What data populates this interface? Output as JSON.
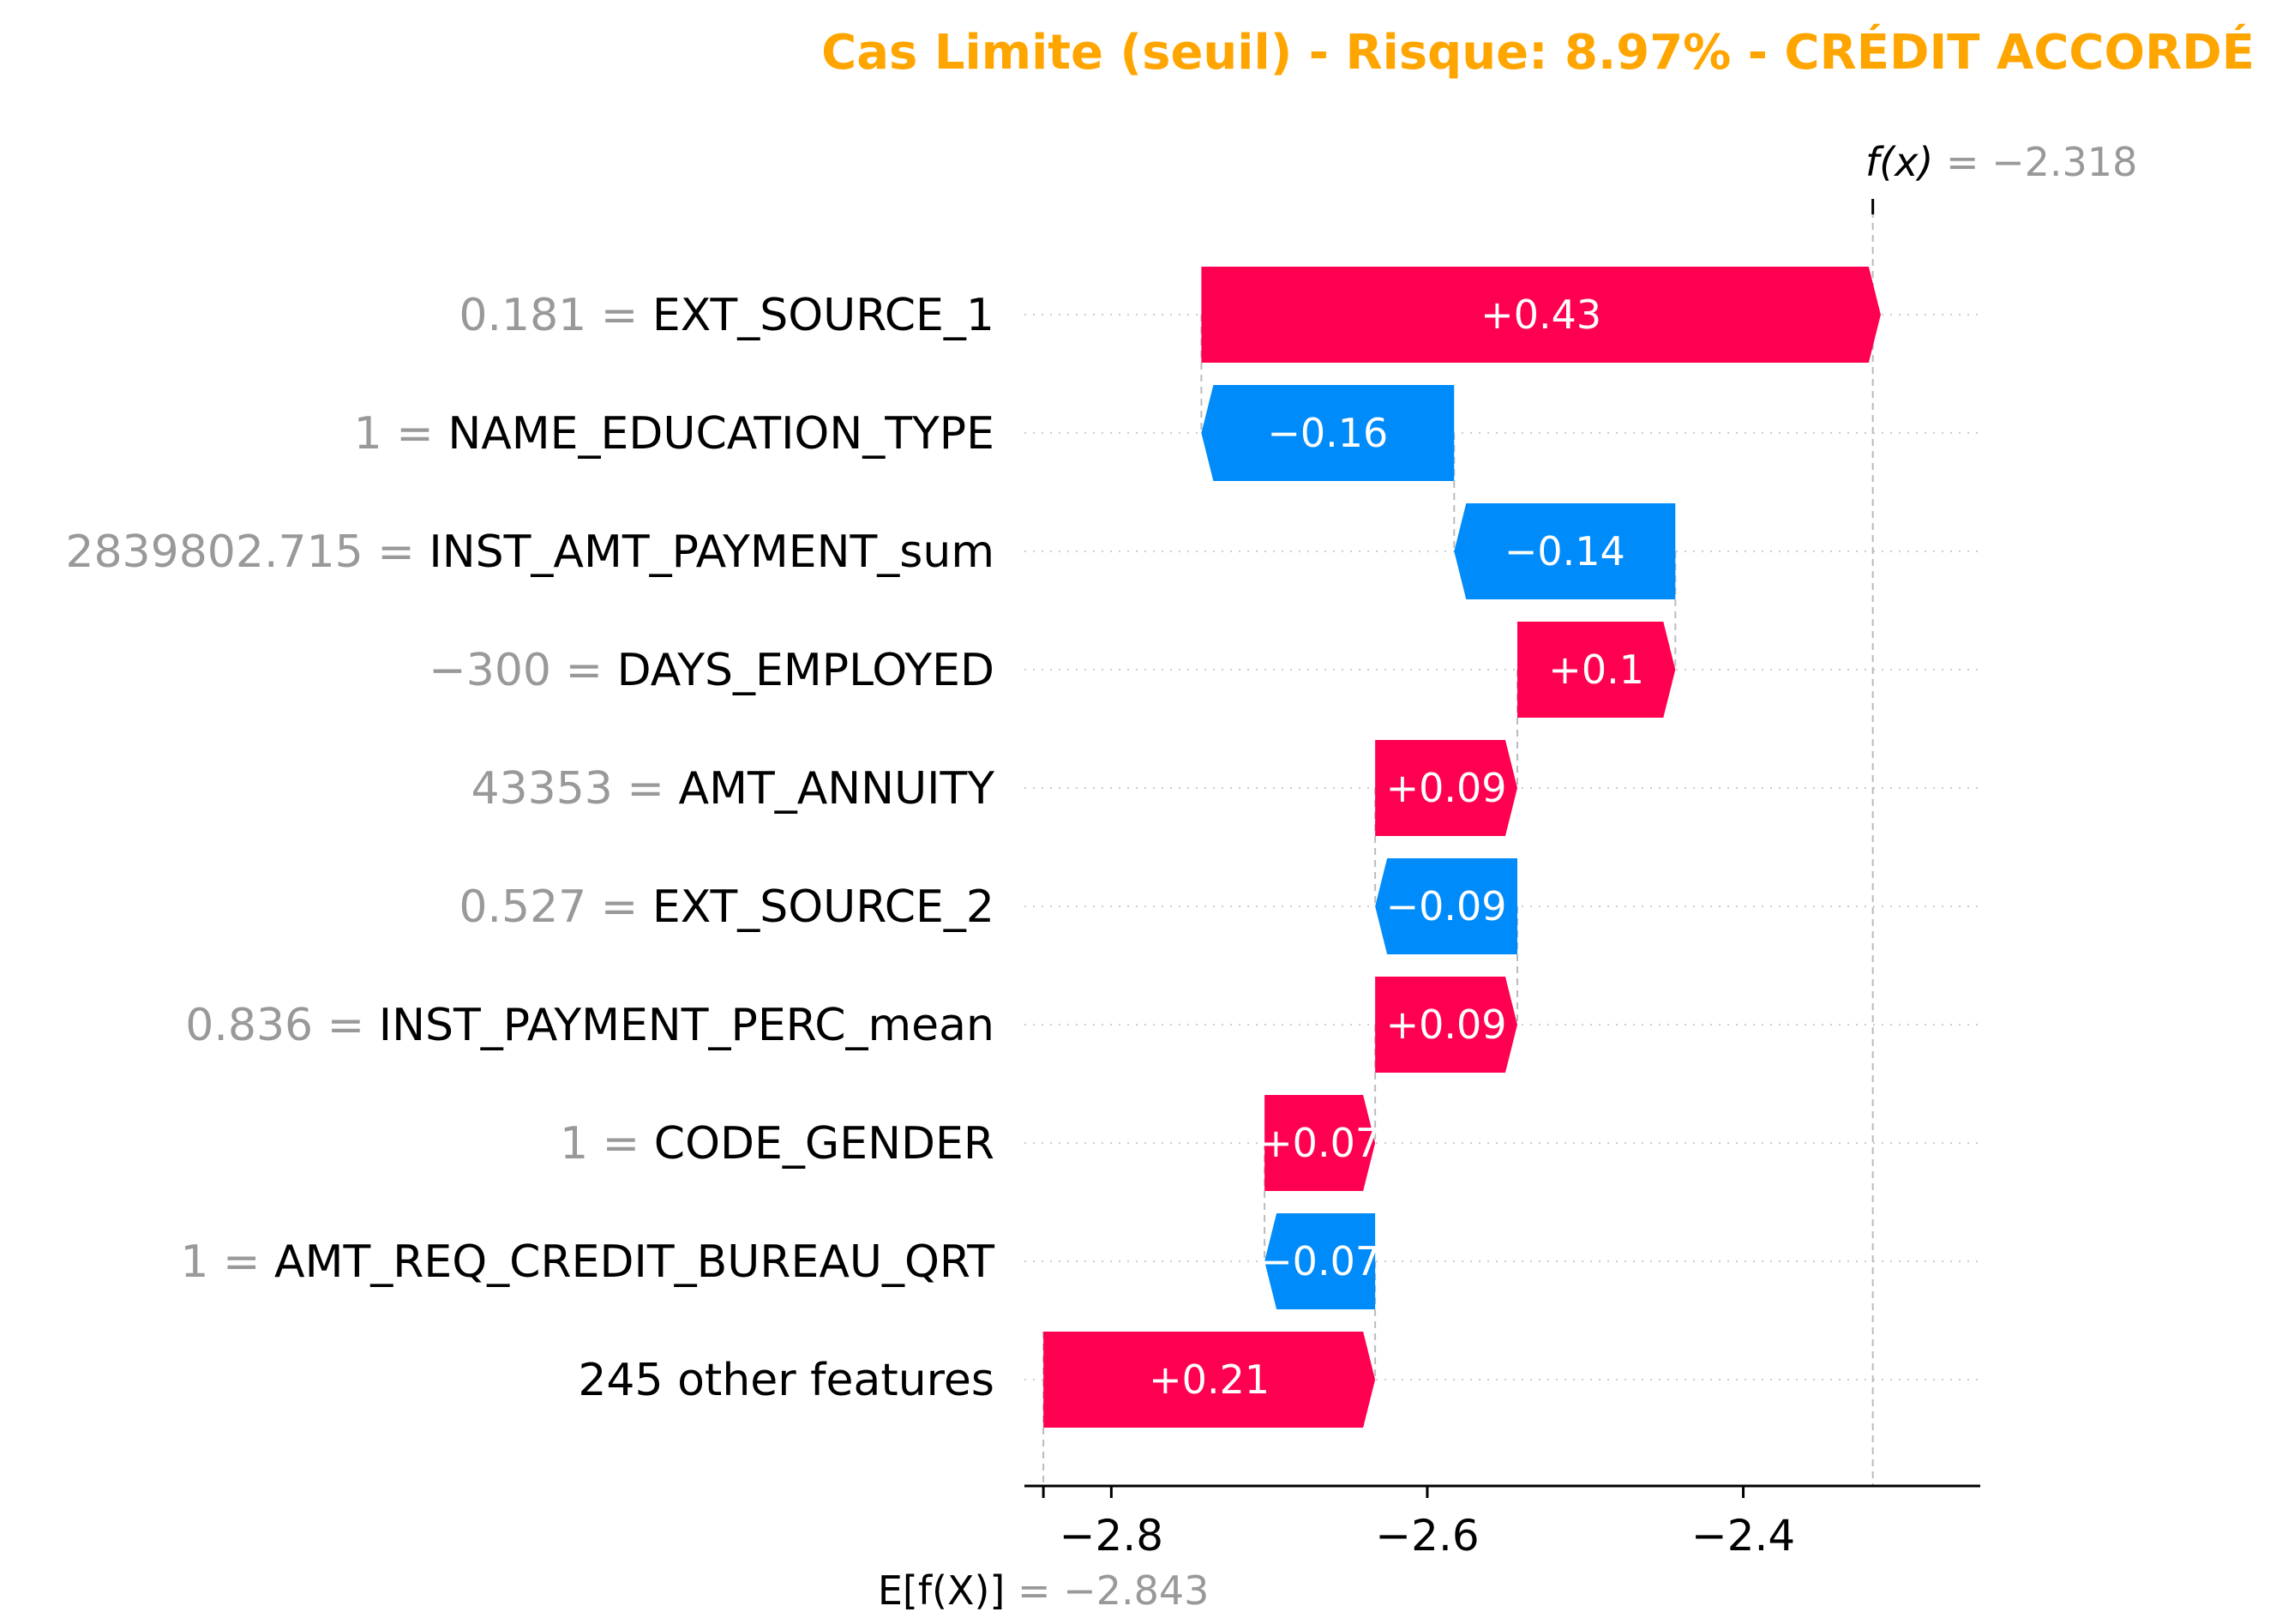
{
  "chart_data": {
    "type": "bar",
    "subtype": "shap-waterfall",
    "title": "Cas Limite (seuil) - Risque: 8.97% - CRÉDIT ACCORDÉ",
    "title_color": "#FFA500",
    "positive_color": "#FF0051",
    "negative_color": "#008BFB",
    "value_color": "#999999",
    "base_value": -2.843,
    "base_label": "E[f(X)]",
    "base_value_text": "= −2.843",
    "output_value": -2.318,
    "output_label": "f(x)",
    "output_value_text": "= −2.318",
    "xlim": [
      -2.855,
      -2.25
    ],
    "xticks": [
      -2.8,
      -2.6,
      -2.4
    ],
    "xtick_labels": [
      "−2.8",
      "−2.6",
      "−2.4"
    ],
    "features": [
      {
        "value_text": "0.181 =",
        "name": "EXT_SOURCE_1",
        "shap": 0.43,
        "label": "+0.43"
      },
      {
        "value_text": "1 =",
        "name": "NAME_EDUCATION_TYPE",
        "shap": -0.16,
        "label": "−0.16"
      },
      {
        "value_text": "2839802.715 =",
        "name": "INST_AMT_PAYMENT_sum",
        "shap": -0.14,
        "label": "−0.14"
      },
      {
        "value_text": "−300 =",
        "name": "DAYS_EMPLOYED",
        "shap": 0.1,
        "label": "+0.1"
      },
      {
        "value_text": "43353 =",
        "name": "AMT_ANNUITY",
        "shap": 0.09,
        "label": "+0.09"
      },
      {
        "value_text": "0.527 =",
        "name": "EXT_SOURCE_2",
        "shap": -0.09,
        "label": "−0.09"
      },
      {
        "value_text": "0.836 =",
        "name": "INST_PAYMENT_PERC_mean",
        "shap": 0.09,
        "label": "+0.09"
      },
      {
        "value_text": "1 =",
        "name": "CODE_GENDER",
        "shap": 0.07,
        "label": "+0.07"
      },
      {
        "value_text": "1 =",
        "name": "AMT_REQ_CREDIT_BUREAU_QRT",
        "shap": -0.07,
        "label": "−0.07"
      },
      {
        "value_text": "",
        "name": "245 other features",
        "shap": 0.21,
        "label": "+0.21"
      }
    ]
  }
}
